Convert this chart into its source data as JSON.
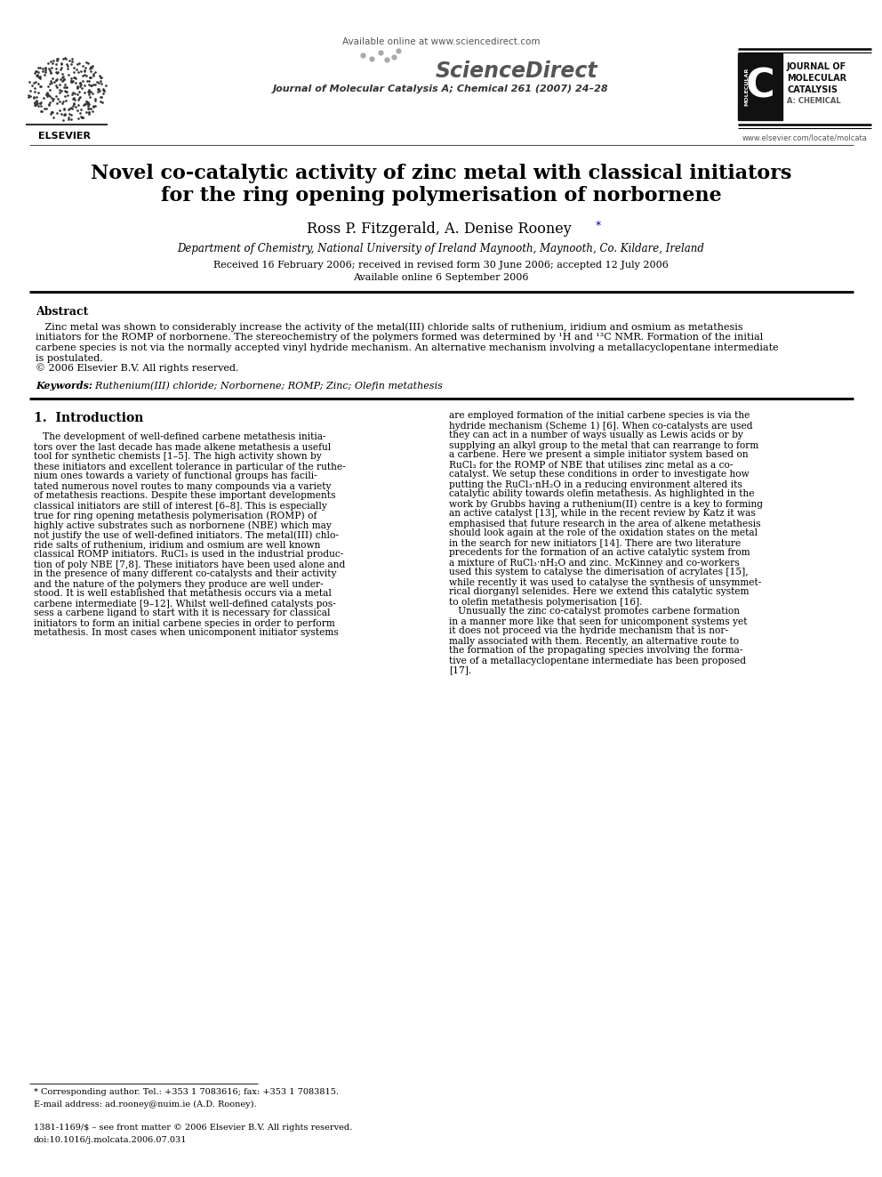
{
  "bg_color": "#ffffff",
  "header_available_online": "Available online at www.sciencedirect.com",
  "header_journal": "Journal of Molecular Catalysis A; Chemical 261 (2007) 24–28",
  "website": "www.elsevier.com/locate/molcata",
  "elsevier_text": "ELSEVIER",
  "title_line1": "Novel co-catalytic activity of zinc metal with classical initiators",
  "title_line2": "for the ring opening polymerisation of norbornene",
  "authors_main": "Ross P. Fitzgerald, A. Denise Rooney ",
  "authors_star": "*",
  "affiliation": "Department of Chemistry, National University of Ireland Maynooth, Maynooth, Co. Kildare, Ireland",
  "received": "Received 16 February 2006; received in revised form 30 June 2006; accepted 12 July 2006",
  "available": "Available online 6 September 2006",
  "abstract_heading": "Abstract",
  "keywords_label": "Keywords:",
  "keywords_text": "  Ruthenium(III) chloride; Norbornene; ROMP; Zinc; Olefin metathesis",
  "section1_heading": "1.  Introduction",
  "footnote_star": "* Corresponding author. Tel.: +353 1 7083616; fax: +353 1 7083815.",
  "footnote_email": "E-mail address: ad.rooney@nuim.ie (A.D. Rooney).",
  "footnote_issn": "1381-1169/$ – see front matter © 2006 Elsevier B.V. All rights reserved.",
  "footnote_doi": "doi:10.1016/j.molcata.2006.07.031",
  "abstract_lines": [
    "   Zinc metal was shown to considerably increase the activity of the metal(III) chloride salts of ruthenium, iridium and osmium as metathesis",
    "initiators for the ROMP of norbornene. The stereochemistry of the polymers formed was determined by ¹H and ¹³C NMR. Formation of the initial",
    "carbene species is not via the normally accepted vinyl hydride mechanism. An alternative mechanism involving a metallacyclopentane intermediate",
    "is postulated.",
    "© 2006 Elsevier B.V. All rights reserved."
  ],
  "col1_lines": [
    "   The development of well-defined carbene metathesis initia-",
    "tors over the last decade has made alkene metathesis a useful",
    "tool for synthetic chemists [1–5]. The high activity shown by",
    "these initiators and excellent tolerance in particular of the ruthe-",
    "nium ones towards a variety of functional groups has facili-",
    "tated numerous novel routes to many compounds via a variety",
    "of metathesis reactions. Despite these important developments",
    "classical initiators are still of interest [6–8]. This is especially",
    "true for ring opening metathesis polymerisation (ROMP) of",
    "highly active substrates such as norbornene (NBE) which may",
    "not justify the use of well-defined initiators. The metal(III) chlo-",
    "ride salts of ruthenium, iridium and osmium are well known",
    "classical ROMP initiators. RuCl₃ is used in the industrial produc-",
    "tion of poly NBE [7,8]. These initiators have been used alone and",
    "in the presence of many different co-catalysts and their activity",
    "and the nature of the polymers they produce are well under-",
    "stood. It is well established that metathesis occurs via a metal",
    "carbene intermediate [9–12]. Whilst well-defined catalysts pos-",
    "sess a carbene ligand to start with it is necessary for classical",
    "initiators to form an initial carbene species in order to perform",
    "metathesis. In most cases when unicomponent initiator systems"
  ],
  "col2_lines": [
    "are employed formation of the initial carbene species is via the",
    "hydride mechanism (Scheme 1) [6]. When co-catalysts are used",
    "they can act in a number of ways usually as Lewis acids or by",
    "supplying an alkyl group to the metal that can rearrange to form",
    "a carbene. Here we present a simple initiator system based on",
    "RuCl₃ for the ROMP of NBE that utilises zinc metal as a co-",
    "catalyst. We setup these conditions in order to investigate how",
    "putting the RuCl₃·nH₂O in a reducing environment altered its",
    "catalytic ability towards olefin metathesis. As highlighted in the",
    "work by Grubbs having a ruthenium(II) centre is a key to forming",
    "an active catalyst [13], while in the recent review by Katz it was",
    "emphasised that future research in the area of alkene metathesis",
    "should look again at the role of the oxidation states on the metal",
    "in the search for new initiators [14]. There are two literature",
    "precedents for the formation of an active catalytic system from",
    "a mixture of RuCl₃·nH₂O and zinc. McKinney and co-workers",
    "used this system to catalyse the dimerisation of acrylates [15],",
    "while recently it was used to catalyse the synthesis of unsymmet-",
    "rical diorganyl selenides. Here we extend this catalytic system",
    "to olefin metathesis polymerisation [16].",
    "   Unusually the zinc co-catalyst promotes carbene formation",
    "in a manner more like that seen for unicomponent systems yet",
    "it does not proceed via the hydride mechanism that is nor-",
    "mally associated with them. Recently, an alternative route to",
    "the formation of the propagating species involving the forma-",
    "tive of a metallacyclopentane intermediate has been proposed",
    "[17]."
  ]
}
